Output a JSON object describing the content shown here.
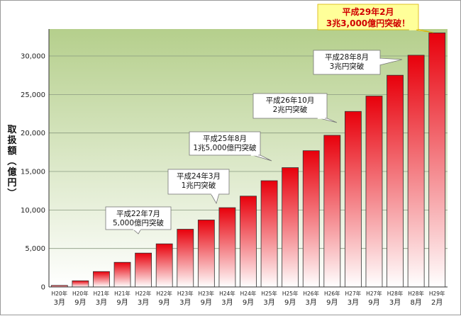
{
  "chart_data": {
    "type": "bar",
    "ylabel": "取扱額（億円）",
    "ylim": [
      0,
      33500
    ],
    "yticks": [
      0,
      5000,
      10000,
      15000,
      20000,
      25000,
      30000
    ],
    "ytick_labels": [
      "0",
      "5,000",
      "10,000",
      "15,000",
      "20,000",
      "25,000",
      "30,000"
    ],
    "categories": [
      [
        "H20年",
        "3月"
      ],
      [
        "H20年",
        "9月"
      ],
      [
        "H21年",
        "3月"
      ],
      [
        "H21年",
        "9月"
      ],
      [
        "H22年",
        "3月"
      ],
      [
        "H22年",
        "9月"
      ],
      [
        "H23年",
        "3月"
      ],
      [
        "H23年",
        "9月"
      ],
      [
        "H24年",
        "3月"
      ],
      [
        "H24年",
        "9月"
      ],
      [
        "H25年",
        "3月"
      ],
      [
        "H25年",
        "9月"
      ],
      [
        "H26年",
        "3月"
      ],
      [
        "H26年",
        "9月"
      ],
      [
        "H27年",
        "3月"
      ],
      [
        "H27年",
        "9月"
      ],
      [
        "H28年",
        "3月"
      ],
      [
        "H28年",
        "8月"
      ],
      [
        "H29年",
        "2月"
      ]
    ],
    "values": [
      200,
      800,
      2000,
      3200,
      4400,
      5600,
      7500,
      8700,
      10300,
      11800,
      13800,
      15500,
      17700,
      19700,
      22800,
      24800,
      27500,
      30100,
      33000
    ],
    "grid": true,
    "colors": {
      "plot_bg_top": "#b5cf8c",
      "plot_bg_bottom": "#ffffff",
      "bar_top": "#e8000b",
      "bar_bottom": "#ffffff",
      "highlight_text": "#d00000",
      "highlight_bg": "#ffff99"
    },
    "annotations": [
      {
        "lines": [
          "平成22年7月",
          "5,000億円突破"
        ],
        "bar_index": 5
      },
      {
        "lines": [
          "平成24年3月",
          "1兆円突破"
        ],
        "bar_index": 8
      },
      {
        "lines": [
          "平成25年8月",
          "1兆5,000億円突破"
        ],
        "bar_index": 11
      },
      {
        "lines": [
          "平成26年10月",
          "2兆円突破"
        ],
        "bar_index": 13
      },
      {
        "lines": [
          "平成28年8月",
          "3兆円突破"
        ],
        "bar_index": 17
      },
      {
        "lines": [
          "平成29年2月",
          "3兆3,000億円突破！"
        ],
        "bar_index": 18,
        "highlight": true
      }
    ]
  }
}
